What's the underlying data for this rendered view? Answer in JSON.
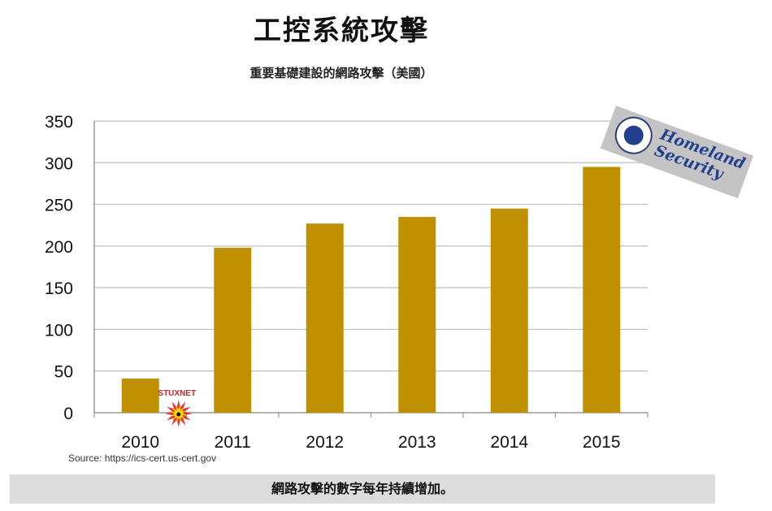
{
  "header": {
    "title": "工控系統攻擊",
    "subtitle": "重要基礎建設的網路攻擊（美國）"
  },
  "chart_data": {
    "type": "bar",
    "categories": [
      "2010",
      "2011",
      "2012",
      "2013",
      "2014",
      "2015"
    ],
    "values": [
      41,
      198,
      227,
      235,
      245,
      295
    ],
    "ylim": [
      0,
      350
    ],
    "yticks": [
      0,
      50,
      100,
      150,
      200,
      250,
      300,
      350
    ],
    "grid": true,
    "bar_color": "#bf9000",
    "annotation": {
      "text": "STUXNET",
      "category": "2010"
    }
  },
  "footer": {
    "source": "Source: https://ics-cert.us-cert.gov",
    "caption": "網路攻擊的數字每年持續增加。"
  },
  "logo": {
    "line1": "Homeland",
    "line2": "Security"
  }
}
